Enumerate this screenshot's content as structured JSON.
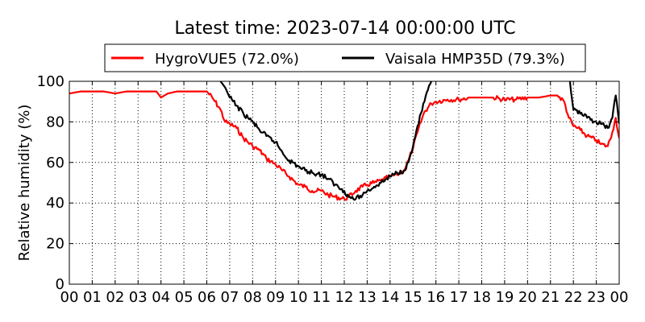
{
  "chart_data": {
    "type": "line",
    "title": "Latest time: 2023-07-14 00:00:00 UTC",
    "xlabel": "",
    "ylabel": "Relative humidity (%)",
    "xlim": [
      0,
      24
    ],
    "ylim": [
      0,
      100
    ],
    "x_tick_values": [
      0,
      1,
      2,
      3,
      4,
      5,
      6,
      7,
      8,
      9,
      10,
      11,
      12,
      13,
      14,
      15,
      16,
      17,
      18,
      19,
      20,
      21,
      22,
      23,
      24
    ],
    "x_tick_labels": [
      "00",
      "01",
      "02",
      "03",
      "04",
      "05",
      "06",
      "07",
      "08",
      "09",
      "10",
      "11",
      "12",
      "13",
      "14",
      "15",
      "16",
      "17",
      "18",
      "19",
      "20",
      "21",
      "22",
      "23",
      "00"
    ],
    "y_ticks": [
      0,
      20,
      40,
      60,
      80,
      100
    ],
    "grid": true,
    "legend_position": "top",
    "series": [
      {
        "name": "HygroVUE5 (72.0%)",
        "color": "#ff0000",
        "x": [
          0,
          0.5,
          1,
          1.5,
          2,
          2.5,
          3,
          3.5,
          3.8,
          4,
          4.3,
          4.7,
          5,
          5.5,
          6,
          6.3,
          6.6,
          6.8,
          7,
          7.3,
          7.6,
          8,
          8.3,
          8.6,
          9,
          9.3,
          9.6,
          10,
          10.3,
          10.6,
          11,
          11.3,
          11.6,
          12,
          12.2,
          12.5,
          12.8,
          13,
          13.3,
          13.6,
          14,
          14.3,
          14.6,
          14.8,
          15,
          15.2,
          15.5,
          15.8,
          16,
          16.5,
          17,
          17.5,
          18,
          18.5,
          19,
          19.5,
          20,
          20.5,
          21,
          21.3,
          21.6,
          21.8,
          22,
          22.3,
          22.6,
          23,
          23.2,
          23.5,
          23.7,
          23.85,
          24
        ],
        "y": [
          94,
          95,
          95,
          95,
          94,
          95,
          95,
          95,
          95,
          92,
          94,
          95,
          95,
          95,
          95,
          91,
          86,
          80,
          79,
          77,
          72,
          68,
          66,
          62,
          59,
          56,
          53,
          49,
          48,
          46,
          46,
          44,
          43,
          42,
          43,
          46,
          48,
          49,
          50,
          51,
          53,
          54,
          56,
          61,
          67,
          75,
          85,
          89,
          90,
          91,
          91,
          92,
          92,
          92,
          91,
          91,
          92,
          92,
          93,
          93,
          90,
          82,
          78,
          76,
          73,
          71,
          69,
          68,
          75,
          82,
          72
        ]
      },
      {
        "name": "Vaisala HMP35D (79.3%)",
        "color": "#000000",
        "x": [
          6.6,
          6.8,
          7,
          7.3,
          7.6,
          8,
          8.3,
          8.6,
          9,
          9.3,
          9.6,
          10,
          10.3,
          10.6,
          11,
          11.3,
          11.6,
          12,
          12.2,
          12.5,
          12.8,
          13,
          13.3,
          13.6,
          14,
          14.3,
          14.6,
          14.8,
          15,
          15.2,
          15.5,
          15.8,
          null,
          21.85,
          22,
          22.3,
          22.6,
          23,
          23.2,
          23.5,
          23.7,
          23.85,
          24
        ],
        "y": [
          100,
          97,
          92,
          88,
          84,
          80,
          76,
          73,
          70,
          65,
          61,
          58,
          56,
          55,
          54,
          52,
          49,
          46,
          43,
          42,
          44,
          46,
          48,
          50,
          53,
          55,
          56,
          60,
          68,
          78,
          90,
          100,
          null,
          100,
          86,
          84,
          82,
          80,
          79,
          77,
          82,
          93,
          79
        ]
      }
    ]
  }
}
